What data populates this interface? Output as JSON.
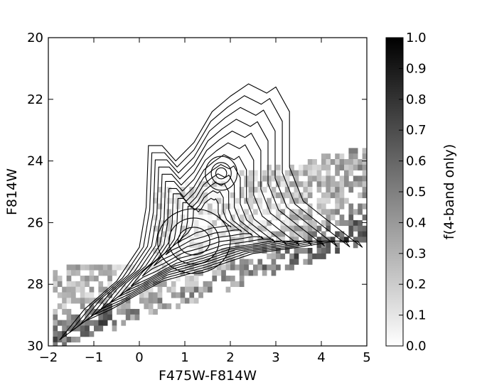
{
  "chart_data": {
    "type": "heatmap",
    "title": "",
    "xlabel": "F475W-F814W",
    "ylabel": "F814W",
    "xlim": [
      -2,
      5
    ],
    "ylim": [
      20,
      30
    ],
    "y_inverted": true,
    "x_ticks": [
      "−2",
      "−1",
      "0",
      "1",
      "2",
      "3",
      "4",
      "5"
    ],
    "y_ticks": [
      "20",
      "22",
      "24",
      "26",
      "28",
      "30"
    ],
    "colorbar": {
      "label": "f(4-band only)",
      "range": [
        0.0,
        1.0
      ],
      "colormap": "grayscale (white=0, black=1)",
      "ticks": [
        "0.0",
        "0.1",
        "0.2",
        "0.3",
        "0.4",
        "0.5",
        "0.6",
        "0.7",
        "0.8",
        "0.9",
        "1.0"
      ]
    },
    "contours": {
      "color": "#000000",
      "count": 12,
      "peaks": [
        {
          "x": 1.2,
          "y": 26.6
        },
        {
          "x": 1.8,
          "y": 24.4
        }
      ]
    },
    "heatmap_density": {
      "description_points": [
        {
          "x": 1.0,
          "y": 26.5,
          "f": 0.15
        },
        {
          "x": 2.0,
          "y": 25.5,
          "f": 0.2
        },
        {
          "x": 3.0,
          "y": 26.5,
          "f": 0.3
        },
        {
          "x": 4.0,
          "y": 26.2,
          "f": 0.45
        },
        {
          "x": 4.5,
          "y": 26.8,
          "f": 0.5
        },
        {
          "x": 0.0,
          "y": 28.5,
          "f": 0.45
        },
        {
          "x": -1.0,
          "y": 29.2,
          "f": 0.55
        },
        {
          "x": -1.7,
          "y": 29.6,
          "f": 0.85
        }
      ]
    }
  }
}
